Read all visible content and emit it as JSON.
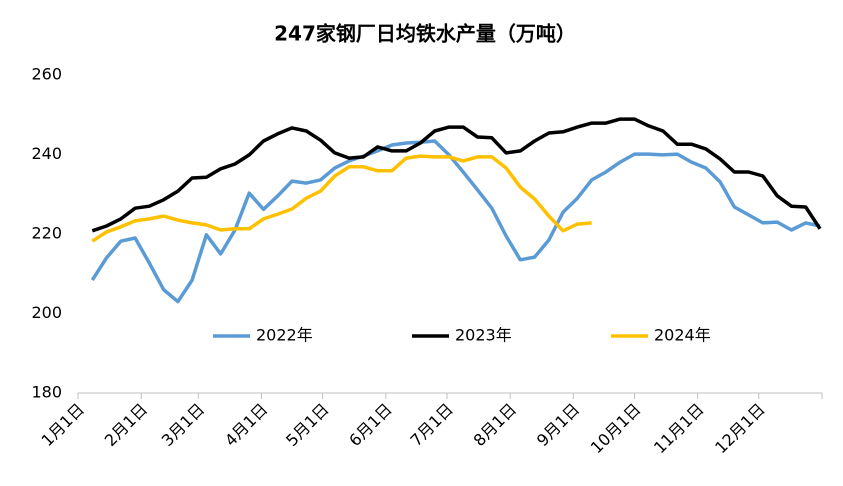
{
  "chart_data": {
    "type": "line",
    "title": "247家钢厂日均铁水产量（万吨）",
    "x": [
      7,
      14,
      21,
      28,
      35,
      42,
      49,
      56,
      63,
      70,
      77,
      84,
      91,
      98,
      105,
      112,
      119,
      126,
      133,
      140,
      147,
      154,
      161,
      168,
      175,
      182,
      189,
      196,
      203,
      210,
      217,
      224,
      231,
      238,
      245,
      252,
      259,
      266,
      273,
      280,
      287,
      294,
      301,
      308,
      315,
      322,
      329,
      336,
      343,
      350,
      357,
      364
    ],
    "xlim": [
      0,
      365
    ],
    "xticks": [
      {
        "value": 0,
        "label": "1月1日"
      },
      {
        "value": 31,
        "label": "2月1日"
      },
      {
        "value": 59,
        "label": "3月1日"
      },
      {
        "value": 90,
        "label": "4月1日"
      },
      {
        "value": 120,
        "label": "5月1日"
      },
      {
        "value": 151,
        "label": "6月1日"
      },
      {
        "value": 181,
        "label": "7月1日"
      },
      {
        "value": 212,
        "label": "8月1日"
      },
      {
        "value": 243,
        "label": "9月1日"
      },
      {
        "value": 273,
        "label": "10月1日"
      },
      {
        "value": 304,
        "label": "11月1日"
      },
      {
        "value": 334,
        "label": "12月1日"
      }
    ],
    "ylim": [
      180,
      260
    ],
    "yticks": [
      180,
      200,
      220,
      240,
      260
    ],
    "legend": "inside-bottom",
    "series": [
      {
        "name": "2022年",
        "color": "#5b9bd5",
        "values": [
          208.4,
          214,
          218.2,
          219,
          212.7,
          206,
          203,
          208.4,
          219.8,
          215,
          221,
          230.3,
          226.2,
          229.6,
          233.3,
          232.8,
          233.6,
          236.6,
          238.4,
          239.6,
          240.9,
          242.4,
          242.9,
          243.1,
          243.4,
          239.9,
          235.6,
          231.1,
          226.5,
          219.5,
          213.5,
          214.2,
          218.5,
          225.5,
          229,
          233.6,
          235.6,
          238.1,
          240.1,
          240.1,
          239.9,
          240.1,
          238.1,
          236.6,
          233.1,
          226.8,
          224.8,
          222.8,
          223,
          221,
          222.8,
          222
        ]
      },
      {
        "name": "2023年",
        "color": "#000000",
        "values": [
          220.8,
          222,
          223.8,
          226.5,
          227,
          228.6,
          230.8,
          234.1,
          234.3,
          236.4,
          237.6,
          239.9,
          243.4,
          245.2,
          246.7,
          245.9,
          243.6,
          240.4,
          239.1,
          239.4,
          241.9,
          240.9,
          240.9,
          242.9,
          245.9,
          246.9,
          246.9,
          244.4,
          244.2,
          240.4,
          240.9,
          243.4,
          245.4,
          245.7,
          246.9,
          247.9,
          247.9,
          248.9,
          248.9,
          247.2,
          245.9,
          242.6,
          242.6,
          241.4,
          238.9,
          235.6,
          235.6,
          234.6,
          229.6,
          227,
          226.8,
          221.3
        ]
      },
      {
        "name": "2024年",
        "color": "#ffc000",
        "values": [
          218.2,
          220.5,
          221.8,
          223.3,
          223.8,
          224.5,
          223.5,
          222.8,
          222.3,
          221,
          221.3,
          221.3,
          223.8,
          225,
          226.3,
          229,
          230.8,
          234.6,
          236.9,
          236.9,
          235.9,
          235.9,
          239.1,
          239.6,
          239.4,
          239.4,
          238.4,
          239.4,
          239.4,
          236.6,
          231.8,
          228.8,
          224.5,
          220.8,
          222.5,
          222.8,
          null,
          null,
          null,
          null,
          null,
          null,
          null,
          null,
          null,
          null,
          null,
          null,
          null,
          null,
          null,
          null
        ]
      }
    ]
  }
}
